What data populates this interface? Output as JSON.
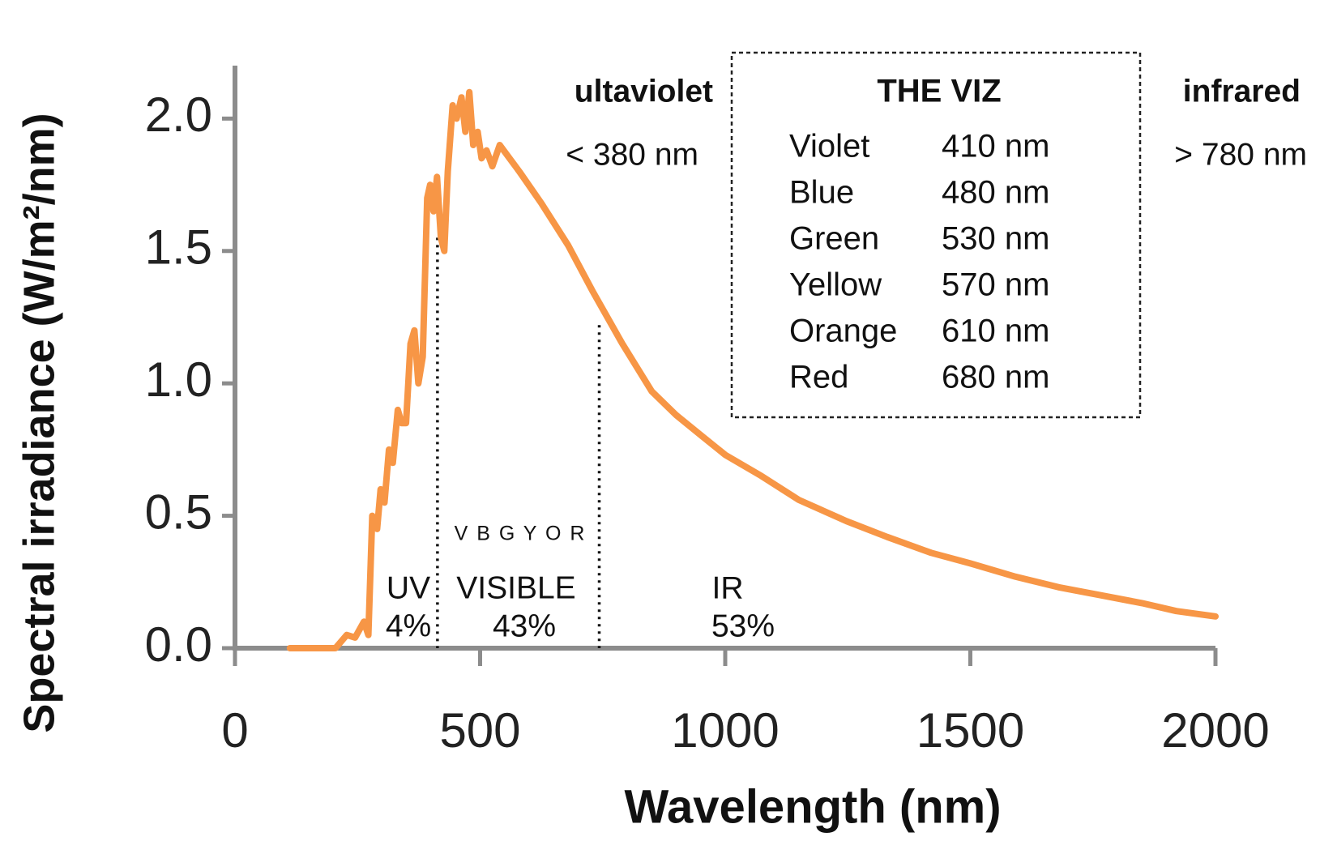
{
  "chart_data": {
    "type": "line",
    "x_label": "Wavelength (nm)",
    "y_label": "Spectral irradiance (W/m²/nm)",
    "xlim": [
      0,
      2000
    ],
    "xticks": [
      0,
      500,
      1000,
      1500,
      2000
    ],
    "ylim": [
      0,
      2.2
    ],
    "yticks": [
      {
        "value": 0,
        "label": "0.0"
      },
      0.5,
      {
        "value": 1,
        "label": "1.0"
      },
      1.5,
      {
        "value": 2,
        "label": "2.0"
      }
    ],
    "series": [
      {
        "name": "Spectral irradiance",
        "color": "#f79646",
        "x": [
          112,
          205,
          228,
          245,
          263,
          272,
          280,
          290,
          297,
          305,
          314,
          322,
          332,
          340,
          349,
          358,
          366,
          374,
          383,
          392,
          398,
          405,
          412,
          420,
          427,
          434,
          444,
          452,
          462,
          470,
          478,
          486,
          495,
          503,
          513,
          525,
          540,
          556,
          580,
          625,
          680,
          729,
          790,
          850,
          900,
          953,
          1000,
          1074,
          1150,
          1247,
          1330,
          1420,
          1500,
          1592,
          1680,
          1765,
          1850,
          1920,
          2000
        ],
        "y": [
          0,
          0,
          0.05,
          0.04,
          0.1,
          0.05,
          0.5,
          0.45,
          0.6,
          0.55,
          0.75,
          0.7,
          0.9,
          0.85,
          0.85,
          1.15,
          1.2,
          1.0,
          1.1,
          1.7,
          1.75,
          1.65,
          1.78,
          1.55,
          1.5,
          1.8,
          2.05,
          2.0,
          2.08,
          1.95,
          2.1,
          1.9,
          1.95,
          1.85,
          1.88,
          1.82,
          1.9,
          1.86,
          1.8,
          1.68,
          1.52,
          1.35,
          1.15,
          0.97,
          0.88,
          0.8,
          0.73,
          0.65,
          0.56,
          0.48,
          0.42,
          0.36,
          0.32,
          0.27,
          0.23,
          0.2,
          0.17,
          0.14,
          0.12
        ]
      }
    ],
    "dividers": [
      {
        "x": 413,
        "y": 1.55
      },
      {
        "x": 743,
        "y": 1.22
      }
    ],
    "annotations": {
      "uv_title": "ultaviolet",
      "uv_range": "< 380 nm",
      "ir_title": "infrared",
      "ir_range": "> 780 nm",
      "colors_letters": "V B G Y O R",
      "uv_label": "UV",
      "uv_share": "4%",
      "visible_label": "VISIBLE",
      "visible_share": "43%",
      "ir_label": "IR",
      "ir_share": "53%"
    },
    "legend_box": {
      "title": "THE VIZ",
      "rows": [
        [
          "Violet",
          "410 nm"
        ],
        [
          "Blue",
          "480 nm"
        ],
        [
          "Green",
          "530 nm"
        ],
        [
          "Yellow",
          "570 nm"
        ],
        [
          "Orange",
          "610 nm"
        ],
        [
          "Red",
          "680 nm"
        ]
      ]
    }
  }
}
